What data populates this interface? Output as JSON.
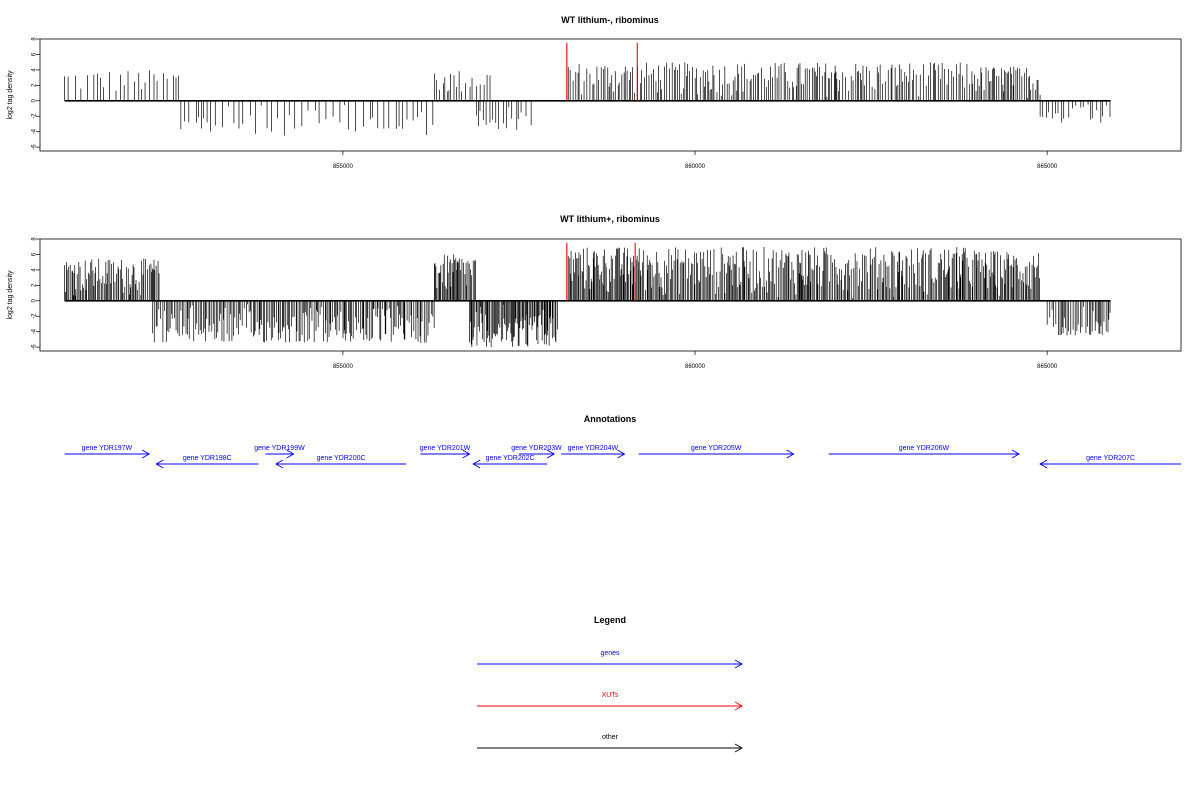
{
  "chart_data": [
    {
      "type": "bar",
      "title": "WT lithium-, ribominus",
      "ylabel": "log2 tag density",
      "xlim": [
        850700,
        866900
      ],
      "ylim": [
        -6.5,
        8
      ],
      "y_ticks": [
        8,
        6,
        4,
        2,
        0,
        -2,
        -4,
        -6
      ],
      "x_ticks": [
        855000,
        860000,
        865000
      ],
      "colors": {
        "plus": "#000000",
        "minus": "#000000",
        "xut": "#ff0000"
      },
      "segments": [
        {
          "start": 851050,
          "end": 852700,
          "strand": "+",
          "density": 0.22,
          "max": 4.0
        },
        {
          "start": 852700,
          "end": 856300,
          "strand": "-",
          "density": 0.2,
          "max": 4.5
        },
        {
          "start": 856300,
          "end": 857100,
          "strand": "+",
          "density": 0.35,
          "max": 4.0
        },
        {
          "start": 856900,
          "end": 857700,
          "strand": "-",
          "density": 0.3,
          "max": 3.8
        },
        {
          "start": 858200,
          "end": 863900,
          "strand": "+",
          "density": 0.5,
          "max": 5.0
        },
        {
          "start": 863900,
          "end": 864900,
          "strand": "+",
          "density": 0.6,
          "max": 4.5
        },
        {
          "start": 864900,
          "end": 865900,
          "strand": "-",
          "density": 0.3,
          "max": 3.0
        }
      ],
      "xut_bars": [
        {
          "x": 858180,
          "value": 7.5
        },
        {
          "x": 859180,
          "value": 7.5
        }
      ]
    },
    {
      "type": "bar",
      "title": "WT lithium+, ribominus",
      "ylabel": "log2 tag density",
      "xlim": [
        850700,
        866900
      ],
      "ylim": [
        -6.5,
        8
      ],
      "y_ticks": [
        8,
        6,
        4,
        2,
        0,
        -2,
        -4,
        -6
      ],
      "x_ticks": [
        855000,
        860000,
        865000
      ],
      "colors": {
        "plus": "#000000",
        "minus": "#000000",
        "xut": "#ff0000"
      },
      "segments": [
        {
          "start": 851050,
          "end": 852400,
          "strand": "+",
          "density": 0.8,
          "max": 5.5
        },
        {
          "start": 852300,
          "end": 856300,
          "strand": "-",
          "density": 0.7,
          "max": 5.5
        },
        {
          "start": 856300,
          "end": 856900,
          "strand": "+",
          "density": 0.9,
          "max": 6.0
        },
        {
          "start": 856800,
          "end": 858050,
          "strand": "-",
          "density": 1.0,
          "max": 6.0
        },
        {
          "start": 858200,
          "end": 859200,
          "strand": "+",
          "density": 1.0,
          "max": 7.0
        },
        {
          "start": 859200,
          "end": 864000,
          "strand": "+",
          "density": 0.85,
          "max": 7.0
        },
        {
          "start": 864000,
          "end": 864900,
          "strand": "+",
          "density": 1.0,
          "max": 6.5
        },
        {
          "start": 865000,
          "end": 865900,
          "strand": "-",
          "density": 0.6,
          "max": 4.5
        }
      ],
      "xut_bars": [
        {
          "x": 858180,
          "value": 7.5
        },
        {
          "x": 859150,
          "value": 7.5
        }
      ]
    }
  ],
  "annotations": {
    "title": "Annotations",
    "genes": [
      {
        "label": "gene YDR197W",
        "start": 851050,
        "end": 852250,
        "strand": "+",
        "track": 0
      },
      {
        "label": "gene YDR198C",
        "start": 852350,
        "end": 853800,
        "strand": "-",
        "track": 1
      },
      {
        "label": "gene YDR199W",
        "start": 853900,
        "end": 854300,
        "strand": "+",
        "track": 0
      },
      {
        "label": "gene YDR200C",
        "start": 854050,
        "end": 855900,
        "strand": "-",
        "track": 1
      },
      {
        "label": "gene YDR201W",
        "start": 856100,
        "end": 856800,
        "strand": "+",
        "track": 0
      },
      {
        "label": "gene YDR202C",
        "start": 856850,
        "end": 857900,
        "strand": "-",
        "track": 1
      },
      {
        "label": "gene YDR203W",
        "start": 857500,
        "end": 858000,
        "strand": "+",
        "track": 0
      },
      {
        "label": "gene YDR204W",
        "start": 858100,
        "end": 859000,
        "strand": "+",
        "track": 0
      },
      {
        "label": "gene YDR205W",
        "start": 859200,
        "end": 861400,
        "strand": "+",
        "track": 0
      },
      {
        "label": "gene YDR206W",
        "start": 861900,
        "end": 864600,
        "strand": "+",
        "track": 0
      },
      {
        "label": "gene YDR207C",
        "start": 864900,
        "end": 866900,
        "strand": "-",
        "track": 1
      }
    ]
  },
  "legend": {
    "title": "Legend",
    "items": [
      {
        "label": "genes",
        "color": "#0000ff"
      },
      {
        "label": "XUTs",
        "color": "#ff0000"
      },
      {
        "label": "other",
        "color": "#000000"
      }
    ]
  }
}
